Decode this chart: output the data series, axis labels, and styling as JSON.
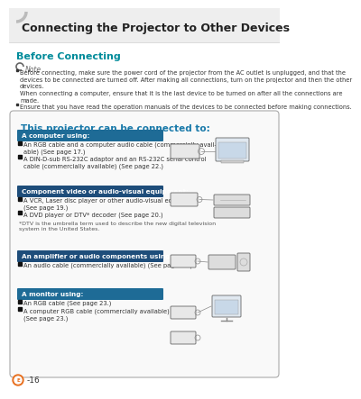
{
  "title": "Connecting the Projector to Other Devices",
  "section_title": "Before Connecting",
  "note_line1": "Before connecting, make sure the power cord of the projector from the AC outlet is unplugged, and that the",
  "note_line2": "devices to be connected are turned off. After making all connections, turn on the projector and then the other",
  "note_line3": "devices.",
  "note_line4": "When connecting a computer, ensure that it is the last device to be turned on after all the connections are",
  "note_line5": "made.",
  "note_bullet2": "Ensure that you have read the operation manuals of the devices to be connected before making connections.",
  "box_title": "This projector can be connected to:",
  "sections": [
    {
      "header": "A computer using:",
      "bullets": [
        "An RGB cable and a computer audio cable (commercially avail-\nable) (See page 17.)",
        "A DIN-D-sub RS-232C adaptor and an RS-232C serial control\ncable (commercially available) (See page 22.)"
      ]
    },
    {
      "header": "Component video or audio-visual equipment:",
      "bullets": [
        "A VCR, Laser disc player or other audio-visual equipment\n(See page 19.)",
        "A DVD player or DTV* decoder (See page 20.)"
      ],
      "footnote": "*DTV is the umbrella term used to describe the new digital television\nsystem in the United States."
    },
    {
      "header": "An amplifier or audio components using:",
      "bullets": [
        "An audio cable (commercially available) (See page 21.)"
      ]
    },
    {
      "header": "A monitor using:",
      "bullets": [
        "An RGB cable (See page 23.)",
        "A computer RGB cable (commercially available)\n(See page 23.)"
      ]
    }
  ],
  "page_num": "-16",
  "bg_color": "#ffffff",
  "header_colors": [
    "#1e6b96",
    "#1e4d7a",
    "#1e4d7a",
    "#1e6b96"
  ],
  "box_border": "#aaaaaa",
  "teal_color": "#008B9A",
  "title_color": "#222222",
  "box_title_color": "#1a7aaa"
}
